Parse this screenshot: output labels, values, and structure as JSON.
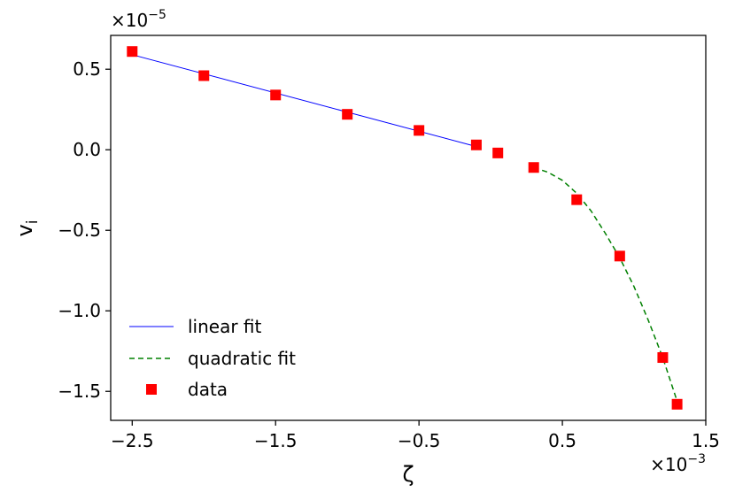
{
  "chart_data": {
    "type": "scatter",
    "title": "",
    "xlabel": "ζ",
    "ylabel_main": "v",
    "ylabel_sub": "i",
    "x_multiplier": {
      "base": "×10",
      "exp": "−3"
    },
    "y_multiplier": {
      "base": "×10",
      "exp": "−5"
    },
    "xlim": [
      -2.65,
      1.5
    ],
    "ylim": [
      -1.68,
      0.71
    ],
    "xticks": [
      -2.5,
      -1.5,
      -0.5,
      0.5,
      1.5
    ],
    "xtick_labels": [
      "−2.5",
      "−1.5",
      "−0.5",
      "0.5",
      "1.5"
    ],
    "yticks": [
      0.5,
      0.0,
      -0.5,
      -1.0,
      -1.5
    ],
    "ytick_labels": [
      "0.5",
      "0.0",
      "−0.5",
      "−1.0",
      "−1.5"
    ],
    "grid": false,
    "legend_position": "lower-left",
    "series": [
      {
        "name": "linear fit",
        "kind": "line",
        "color": "#0000ff",
        "style": "solid",
        "x": [
          -2.5,
          -0.1
        ],
        "y": [
          0.59,
          0.02
        ]
      },
      {
        "name": "quadratic fit",
        "kind": "line",
        "color": "#008000",
        "style": "dashed",
        "x": [
          0.3,
          0.4,
          0.5,
          0.6,
          0.7,
          0.8,
          0.9,
          1.0,
          1.1,
          1.2,
          1.3
        ],
        "y": [
          -0.11,
          -0.14,
          -0.19,
          -0.27,
          -0.38,
          -0.52,
          -0.67,
          -0.85,
          -1.06,
          -1.29,
          -1.56
        ]
      },
      {
        "name": "data",
        "kind": "scatter",
        "marker": "square",
        "color": "#ff0000",
        "x": [
          -2.5,
          -2.0,
          -1.5,
          -1.0,
          -0.5,
          -0.1,
          0.05,
          0.3,
          0.6,
          0.9,
          1.2,
          1.3
        ],
        "y": [
          0.61,
          0.46,
          0.34,
          0.22,
          0.12,
          0.03,
          -0.02,
          -0.11,
          -0.31,
          -0.66,
          -1.29,
          -1.58
        ]
      }
    ],
    "legend": [
      "linear fit",
      "quadratic fit",
      "data"
    ]
  }
}
